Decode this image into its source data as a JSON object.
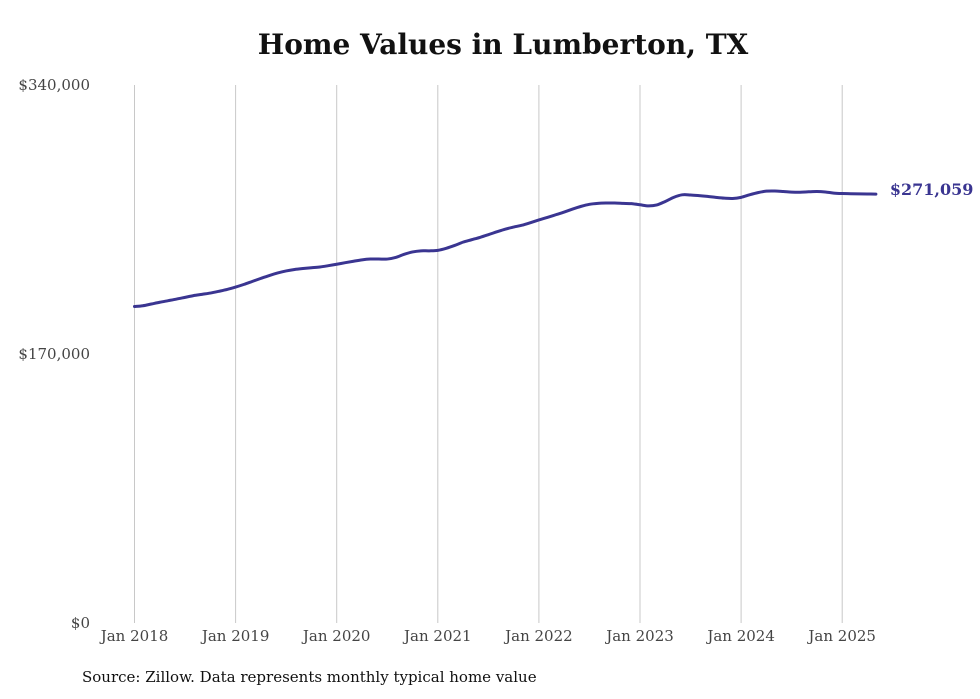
{
  "chart_data": {
    "type": "line",
    "title": "Home Values in Lumberton, TX",
    "source": "Source: Zillow. Data represents monthly typical home value",
    "xlabel": "",
    "ylabel": "",
    "ylim": [
      0,
      340000
    ],
    "y_ticks": [
      {
        "value": 0,
        "label": "$0"
      },
      {
        "value": 170000,
        "label": "$170,000"
      },
      {
        "value": 340000,
        "label": "$340,000"
      }
    ],
    "x_ticks": [
      "Jan 2018",
      "Jan 2019",
      "Jan 2020",
      "Jan 2021",
      "Jan 2022",
      "Jan 2023",
      "Jan 2024",
      "Jan 2025"
    ],
    "grid": "vertical",
    "line_color": "#3a3591",
    "end_label": "$271,059",
    "series": [
      {
        "x": [
          "2018-01",
          "2018-02",
          "2018-03",
          "2018-04",
          "2018-05",
          "2018-06",
          "2018-07",
          "2018-08",
          "2018-09",
          "2018-10",
          "2018-11",
          "2018-12",
          "2019-01",
          "2019-02",
          "2019-03",
          "2019-04",
          "2019-05",
          "2019-06",
          "2019-07",
          "2019-08",
          "2019-09",
          "2019-10",
          "2019-11",
          "2019-12",
          "2020-01",
          "2020-02",
          "2020-03",
          "2020-04",
          "2020-05",
          "2020-06",
          "2020-07",
          "2020-08",
          "2020-09",
          "2020-10",
          "2020-11",
          "2020-12",
          "2021-01",
          "2021-02",
          "2021-03",
          "2021-04",
          "2021-05",
          "2021-06",
          "2021-07",
          "2021-08",
          "2021-09",
          "2021-10",
          "2021-11",
          "2021-12",
          "2022-01",
          "2022-02",
          "2022-03",
          "2022-04",
          "2022-05",
          "2022-06",
          "2022-07",
          "2022-08",
          "2022-09",
          "2022-10",
          "2022-11",
          "2022-12",
          "2023-01",
          "2023-02",
          "2023-03",
          "2023-04",
          "2023-05",
          "2023-06",
          "2023-07",
          "2023-08",
          "2023-09",
          "2023-10",
          "2023-11",
          "2023-12",
          "2024-01",
          "2024-02",
          "2024-03",
          "2024-04",
          "2024-05",
          "2024-06",
          "2024-07",
          "2024-08",
          "2024-09",
          "2024-10",
          "2024-11",
          "2024-12",
          "2025-01",
          "2025-02",
          "2025-03",
          "2025-04",
          "2025-05"
        ],
        "values": [
          200000,
          200500,
          201600,
          202700,
          203700,
          204700,
          205800,
          206900,
          207700,
          208500,
          209600,
          210800,
          212300,
          214000,
          215900,
          217800,
          219600,
          221200,
          222500,
          223400,
          224000,
          224500,
          225000,
          225800,
          226700,
          227700,
          228600,
          229500,
          230000,
          230000,
          230000,
          231000,
          233000,
          234500,
          235200,
          235200,
          235500,
          236800,
          238600,
          240700,
          242200,
          243700,
          245400,
          247200,
          248900,
          250200,
          251400,
          253000,
          254700,
          256300,
          258000,
          259700,
          261600,
          263300,
          264600,
          265200,
          265400,
          265400,
          265200,
          265000,
          264300,
          263600,
          264200,
          266400,
          269000,
          270600,
          270500,
          270100,
          269600,
          269000,
          268500,
          268300,
          269000,
          270600,
          272000,
          272900,
          273000,
          272700,
          272300,
          272200,
          272500,
          272700,
          272400,
          271700,
          271400,
          271300,
          271200,
          271100,
          271059
        ]
      }
    ]
  }
}
